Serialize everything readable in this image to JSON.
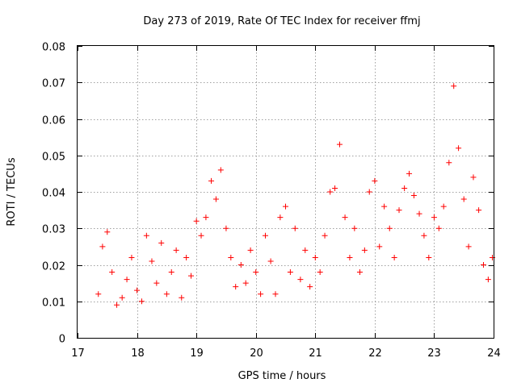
{
  "chart_data": {
    "type": "scatter",
    "title": "Day 273 of 2019, Rate Of TEC Index for receiver ffmj",
    "xlabel": "GPS time / hours",
    "ylabel": "ROTI / TECUs",
    "xlim": [
      17,
      24
    ],
    "ylim": [
      0,
      0.08
    ],
    "xticks": [
      17,
      18,
      19,
      20,
      21,
      22,
      23,
      24
    ],
    "yticks": [
      0,
      0.01,
      0.02,
      0.03,
      0.04,
      0.05,
      0.06,
      0.07,
      0.08
    ],
    "xtick_labels": [
      "17",
      "18",
      "19",
      "20",
      "21",
      "22",
      "23",
      "24"
    ],
    "ytick_labels": [
      "0",
      "0.01",
      "0.02",
      "0.03",
      "0.04",
      "0.05",
      "0.06",
      "0.07",
      "0.08"
    ],
    "grid": true,
    "marker": "+",
    "color": "#ff0000",
    "series": [
      {
        "name": "ROTI",
        "x": [
          17.35,
          17.42,
          17.5,
          17.58,
          17.66,
          17.75,
          17.83,
          17.91,
          18.0,
          18.08,
          18.16,
          18.25,
          18.33,
          18.41,
          18.5,
          18.58,
          18.66,
          18.75,
          18.83,
          18.91,
          19.0,
          19.08,
          19.16,
          19.25,
          19.33,
          19.41,
          19.5,
          19.58,
          19.66,
          19.75,
          19.83,
          19.91,
          20.0,
          20.08,
          20.16,
          20.25,
          20.33,
          20.41,
          20.5,
          20.58,
          20.66,
          20.75,
          20.83,
          20.91,
          21.0,
          21.08,
          21.16,
          21.25,
          21.33,
          21.41,
          21.5,
          21.58,
          21.66,
          21.75,
          21.83,
          21.91,
          22.0,
          22.08,
          22.16,
          22.25,
          22.33,
          22.41,
          22.5,
          22.58,
          22.66,
          22.75,
          22.83,
          22.91,
          23.0,
          23.08,
          23.16,
          23.25,
          23.33,
          23.41,
          23.5,
          23.58,
          23.66,
          23.75,
          23.83,
          23.91,
          23.98
        ],
        "y": [
          0.012,
          0.025,
          0.029,
          0.018,
          0.009,
          0.011,
          0.016,
          0.022,
          0.013,
          0.01,
          0.028,
          0.021,
          0.015,
          0.026,
          0.012,
          0.018,
          0.024,
          0.011,
          0.022,
          0.017,
          0.032,
          0.028,
          0.033,
          0.043,
          0.038,
          0.046,
          0.03,
          0.022,
          0.014,
          0.02,
          0.015,
          0.024,
          0.018,
          0.012,
          0.028,
          0.021,
          0.012,
          0.033,
          0.036,
          0.018,
          0.03,
          0.016,
          0.024,
          0.014,
          0.022,
          0.018,
          0.028,
          0.04,
          0.041,
          0.053,
          0.033,
          0.022,
          0.03,
          0.018,
          0.024,
          0.04,
          0.043,
          0.025,
          0.036,
          0.03,
          0.022,
          0.035,
          0.041,
          0.045,
          0.039,
          0.034,
          0.028,
          0.022,
          0.033,
          0.03,
          0.036,
          0.048,
          0.069,
          0.052,
          0.038,
          0.025,
          0.044,
          0.035,
          0.02,
          0.016,
          0.022
        ]
      }
    ]
  }
}
